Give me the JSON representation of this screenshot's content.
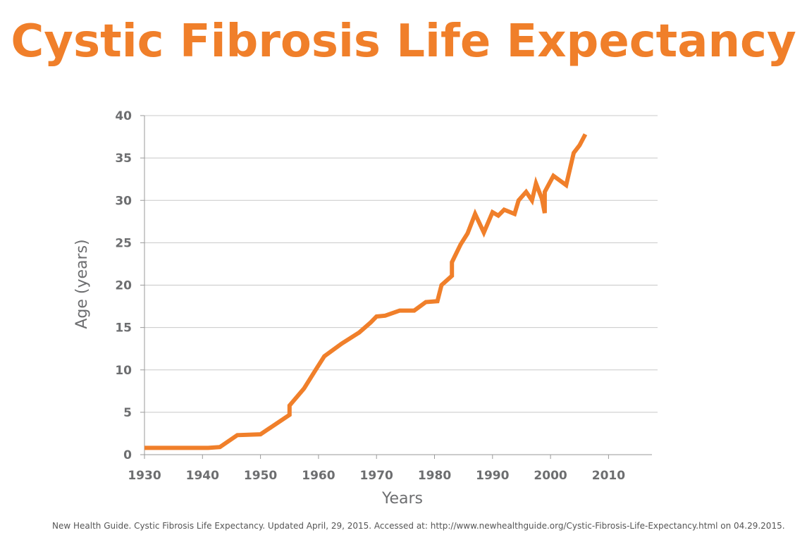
{
  "title": "Cystic Fibrosis Life Expectancy",
  "source": "New Health Guide. Cystic Fibrosis Life Expectancy. Updated April, 29, 2015. Accessed at: http://www.newhealthguide.org/Cystic-Fibrosis-Life-Expectancy.html on 04.29.2015.",
  "colors": {
    "title": "#f07f2a",
    "line": "#f07f2a",
    "grid": "#c8c8c8",
    "text": "#6d6e70"
  },
  "chart_data": {
    "type": "line",
    "title": "Cystic Fibrosis Life Expectancy",
    "xlabel": "Years",
    "ylabel": "Age (years)",
    "xlim": [
      1930,
      2017
    ],
    "ylim": [
      0,
      40
    ],
    "xticks": [
      1930,
      1940,
      1950,
      1960,
      1970,
      1980,
      1990,
      2000,
      2010
    ],
    "yticks": [
      0,
      5,
      10,
      15,
      20,
      25,
      30,
      35,
      40
    ],
    "grid": "horizontal",
    "series": [
      {
        "x": [
          1930,
          1935,
          1941,
          1943,
          1946,
          1950,
          1955,
          1955,
          1957.5,
          1959.5,
          1961,
          1964,
          1967,
          1969,
          1970,
          1971.5,
          1974,
          1976.5,
          1978.5,
          1980.5,
          1981.2,
          1983,
          1983,
          1984.5,
          1985.7,
          1987,
          1988.5,
          1990,
          1991,
          1992,
          1993.8,
          1994.5,
          1995.8,
          1996.8,
          1997.5,
          1998.5,
          1999,
          1999,
          2000.5,
          2002.7,
          2004,
          2005,
          2006
        ],
        "y": [
          0.8,
          0.8,
          0.8,
          0.9,
          2.3,
          2.4,
          4.7,
          5.8,
          7.8,
          10.0,
          11.6,
          13.1,
          14.4,
          15.6,
          16.3,
          16.4,
          17.0,
          17.0,
          18.0,
          18.1,
          20.0,
          21.1,
          22.7,
          24.8,
          26.1,
          28.4,
          26.2,
          28.6,
          28.2,
          28.9,
          28.4,
          30.0,
          31.0,
          30.0,
          32.0,
          30.2,
          28.5,
          31.0,
          32.9,
          31.8,
          35.6,
          36.5,
          37.8
        ]
      }
    ]
  }
}
